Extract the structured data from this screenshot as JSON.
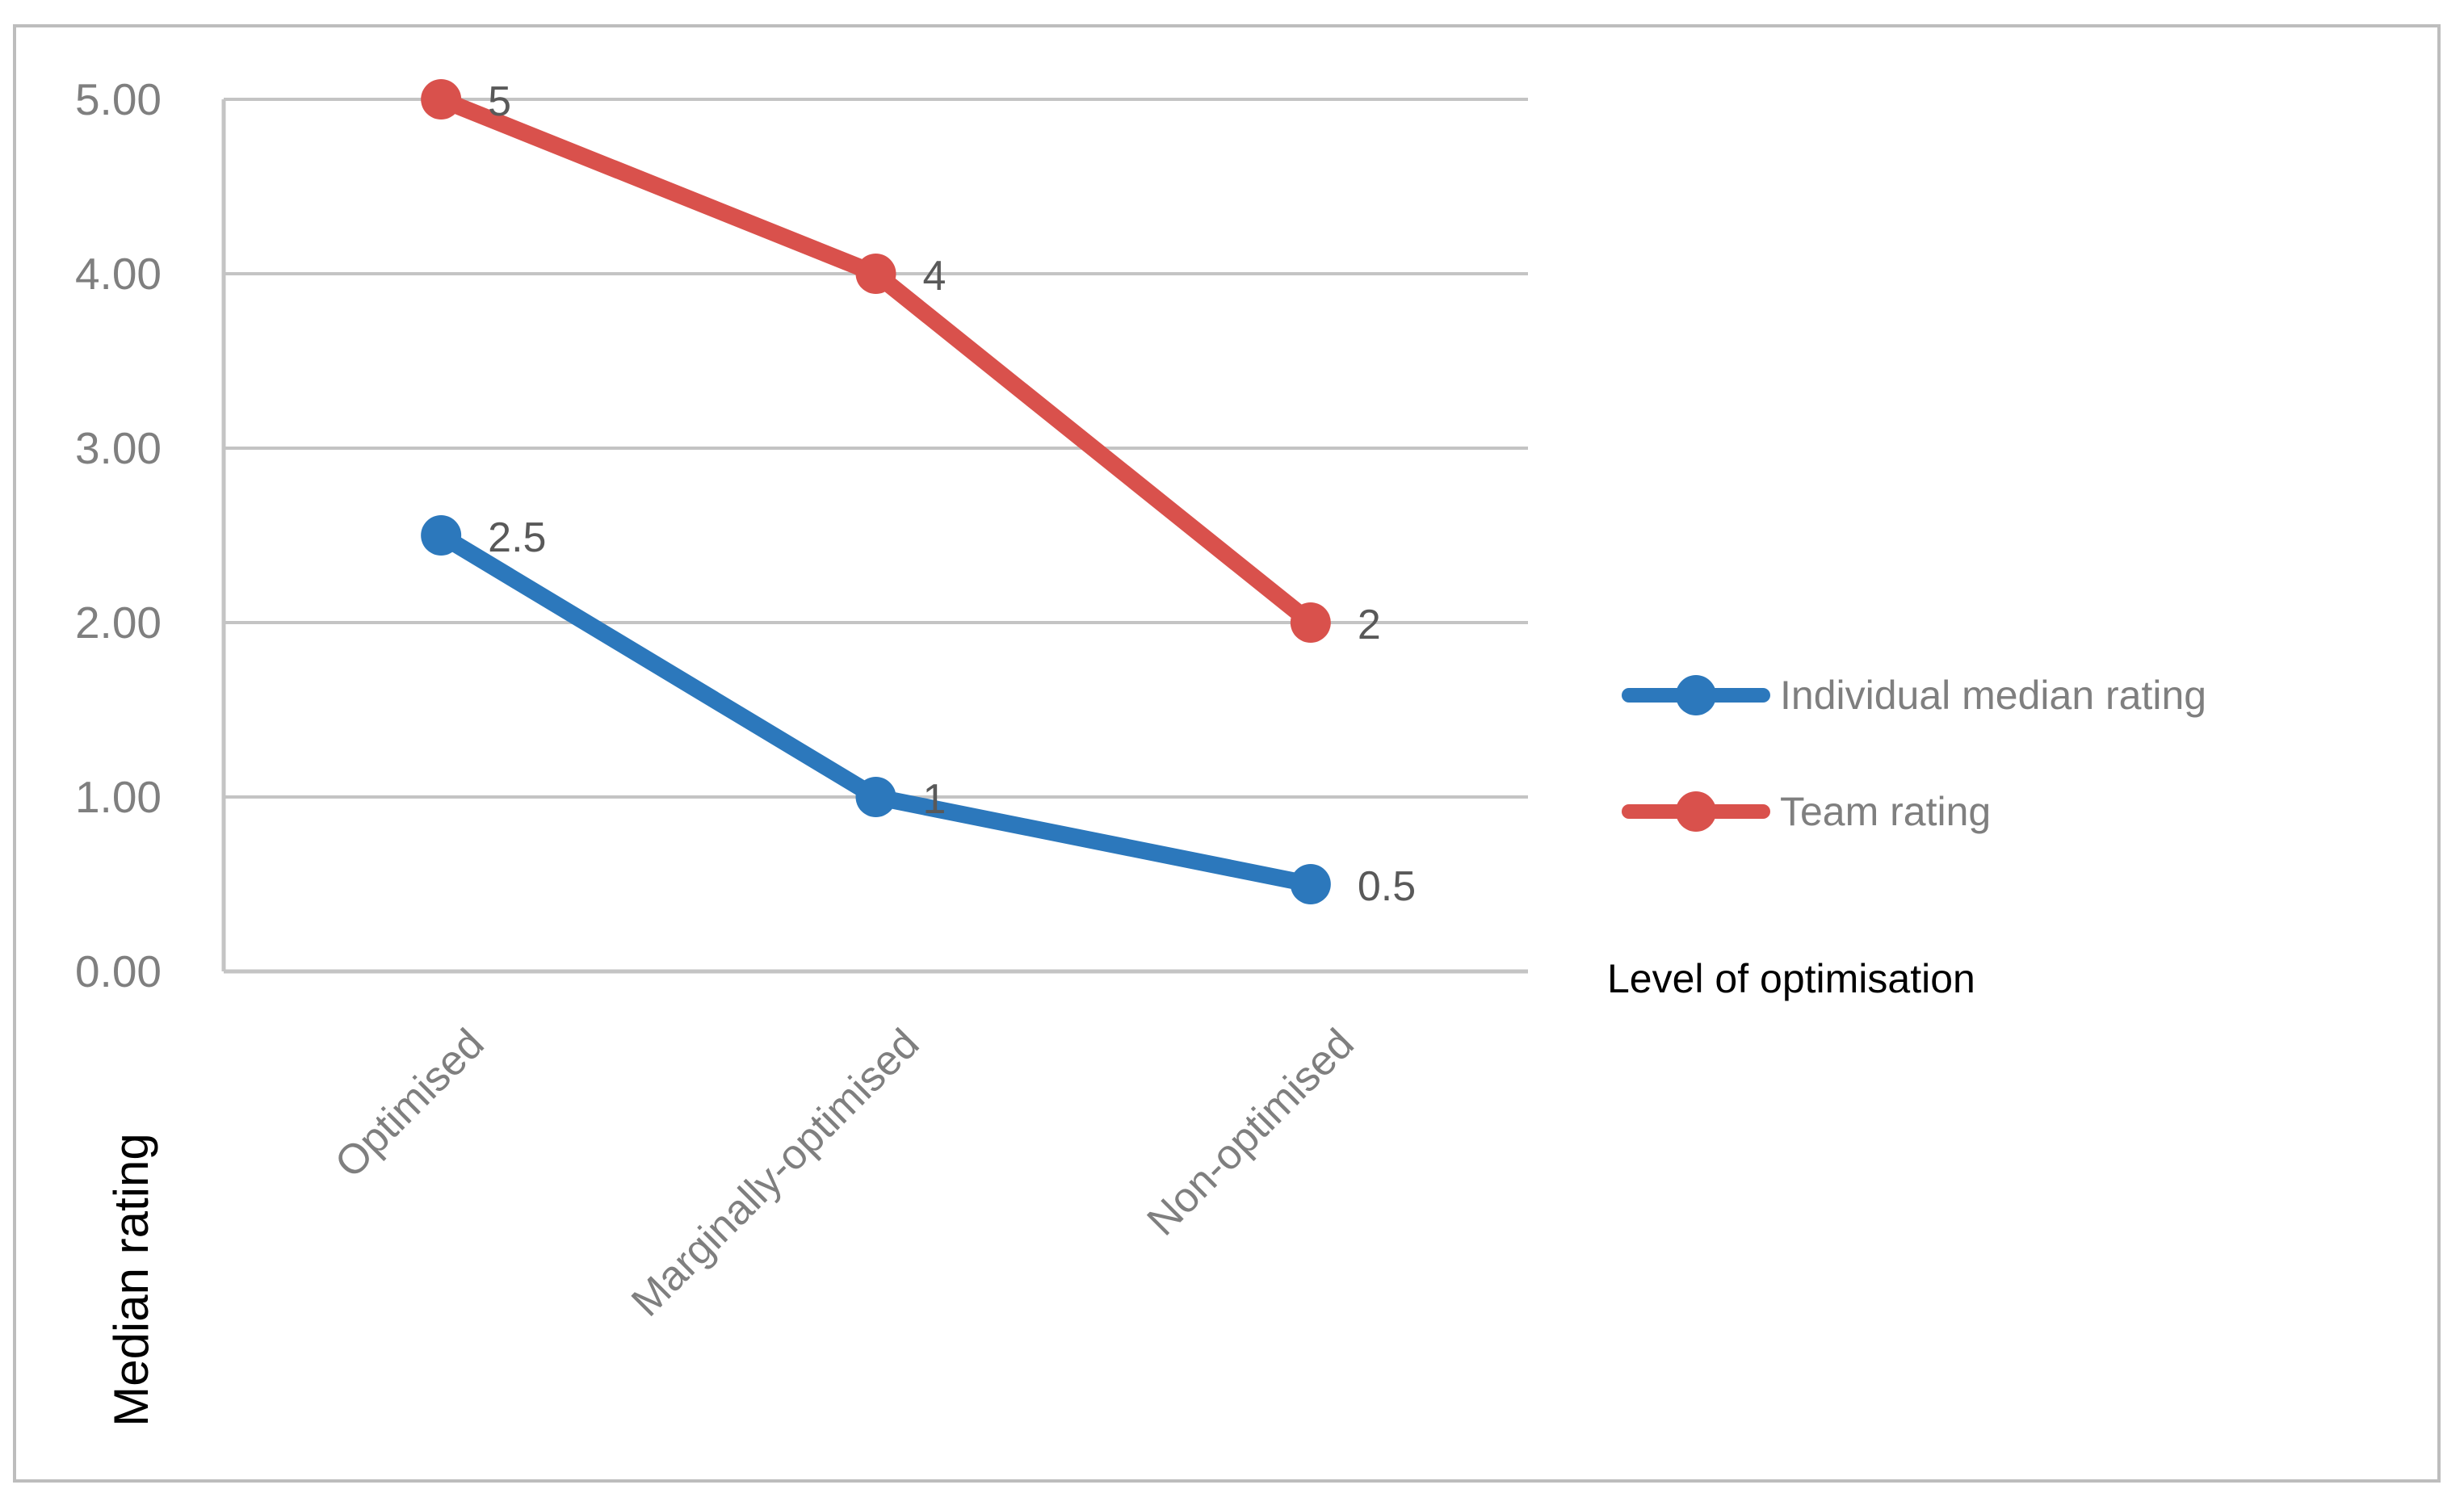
{
  "chart_data": {
    "type": "line",
    "categories": [
      "Optimised",
      "Marginally-optimised",
      "Non-optimised"
    ],
    "series": [
      {
        "name": "Individual median rating",
        "values": [
          2.5,
          1,
          0.5
        ],
        "labels": [
          "2.5",
          "1",
          "0.5"
        ],
        "color": "#2C78BC"
      },
      {
        "name": "Team rating",
        "values": [
          5,
          4,
          2
        ],
        "labels": [
          "5",
          "4",
          "2"
        ],
        "color": "#D9514C"
      }
    ],
    "xlabel": "Level of optimisation",
    "ylabel": "Median rating",
    "ylim": [
      0,
      5
    ],
    "y_tick_labels": [
      "5.00",
      "4.00",
      "3.00",
      "2.00",
      "1.00",
      "0.00"
    ],
    "grid": true,
    "legend_position": "right",
    "data_labels_shown": true
  },
  "style": {
    "gridline_color": "#C4C4C4",
    "axis_line_color": "#C4C4C4",
    "tick_label_color": "#7F7F7F",
    "category_label_color": "#7F7F7F",
    "data_label_color": "#595959",
    "legend_text_color": "#7F7F7F",
    "title_color": "#000000",
    "border_color": "#BDBDBD",
    "background_color": "#FFFFFF"
  }
}
